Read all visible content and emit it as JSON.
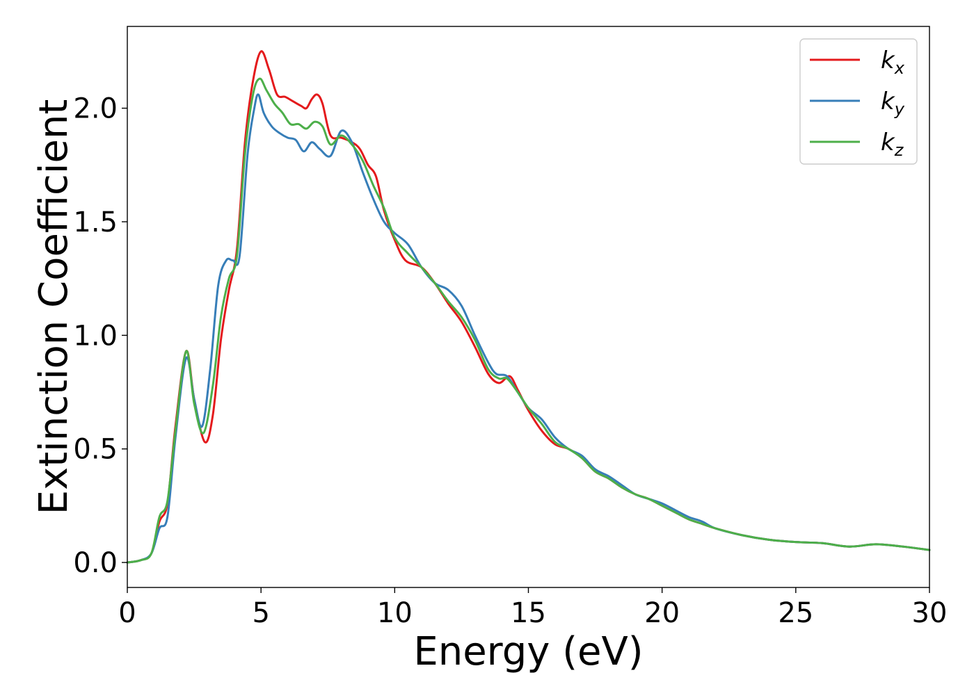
{
  "chart_data": {
    "type": "line",
    "title": "",
    "xlabel": "Energy (eV)",
    "ylabel": "Extinction Coefficient",
    "xlim": [
      0,
      30
    ],
    "ylim": [
      -0.11,
      2.36
    ],
    "xticks": [
      0,
      5,
      10,
      15,
      20,
      25,
      30
    ],
    "xtick_labels": [
      "0",
      "5",
      "10",
      "15",
      "20",
      "25",
      "30"
    ],
    "yticks": [
      0.0,
      0.5,
      1.0,
      1.5,
      2.0
    ],
    "ytick_labels": [
      "0.0",
      "0.5",
      "1.0",
      "1.5",
      "2.0"
    ],
    "grid": false,
    "legend_position": "top-right",
    "series": [
      {
        "name": "k",
        "subscript": "x",
        "color": "#e41a1c",
        "points": [
          [
            0,
            0
          ],
          [
            0.5,
            0.01
          ],
          [
            0.9,
            0.04
          ],
          [
            1.2,
            0.18
          ],
          [
            1.5,
            0.26
          ],
          [
            1.8,
            0.6
          ],
          [
            2.2,
            0.93
          ],
          [
            2.5,
            0.72
          ],
          [
            2.9,
            0.53
          ],
          [
            3.2,
            0.65
          ],
          [
            3.5,
            0.98
          ],
          [
            3.8,
            1.2
          ],
          [
            4.1,
            1.38
          ],
          [
            4.4,
            1.85
          ],
          [
            4.7,
            2.12
          ],
          [
            5.0,
            2.25
          ],
          [
            5.3,
            2.17
          ],
          [
            5.6,
            2.06
          ],
          [
            5.9,
            2.05
          ],
          [
            6.2,
            2.03
          ],
          [
            6.5,
            2.01
          ],
          [
            6.7,
            2.0
          ],
          [
            6.9,
            2.04
          ],
          [
            7.1,
            2.06
          ],
          [
            7.3,
            2.02
          ],
          [
            7.6,
            1.88
          ],
          [
            8.0,
            1.87
          ],
          [
            8.4,
            1.85
          ],
          [
            8.7,
            1.82
          ],
          [
            9.0,
            1.75
          ],
          [
            9.3,
            1.7
          ],
          [
            9.6,
            1.55
          ],
          [
            10.0,
            1.42
          ],
          [
            10.4,
            1.33
          ],
          [
            11.0,
            1.3
          ],
          [
            11.5,
            1.23
          ],
          [
            12.0,
            1.14
          ],
          [
            12.5,
            1.06
          ],
          [
            13.0,
            0.95
          ],
          [
            13.5,
            0.83
          ],
          [
            13.9,
            0.79
          ],
          [
            14.3,
            0.82
          ],
          [
            14.6,
            0.76
          ],
          [
            15.0,
            0.67
          ],
          [
            15.5,
            0.58
          ],
          [
            16.0,
            0.52
          ],
          [
            16.5,
            0.5
          ],
          [
            17.0,
            0.46
          ],
          [
            17.5,
            0.4
          ],
          [
            18.0,
            0.37
          ],
          [
            18.5,
            0.33
          ],
          [
            19.0,
            0.3
          ],
          [
            19.5,
            0.28
          ],
          [
            20.0,
            0.25
          ],
          [
            20.5,
            0.22
          ],
          [
            21.0,
            0.19
          ],
          [
            21.5,
            0.17
          ],
          [
            22.0,
            0.15
          ],
          [
            23.0,
            0.12
          ],
          [
            24.0,
            0.1
          ],
          [
            25.0,
            0.09
          ],
          [
            26.0,
            0.085
          ],
          [
            27.0,
            0.07
          ],
          [
            28.0,
            0.08
          ],
          [
            29.0,
            0.07
          ],
          [
            30.0,
            0.055
          ]
        ]
      },
      {
        "name": "k",
        "subscript": "y",
        "color": "#377eb8",
        "points": [
          [
            0,
            0
          ],
          [
            0.5,
            0.01
          ],
          [
            0.9,
            0.04
          ],
          [
            1.2,
            0.15
          ],
          [
            1.5,
            0.2
          ],
          [
            1.8,
            0.55
          ],
          [
            2.2,
            0.9
          ],
          [
            2.5,
            0.72
          ],
          [
            2.8,
            0.6
          ],
          [
            3.1,
            0.85
          ],
          [
            3.4,
            1.22
          ],
          [
            3.7,
            1.33
          ],
          [
            3.95,
            1.33
          ],
          [
            4.2,
            1.35
          ],
          [
            4.5,
            1.8
          ],
          [
            4.75,
            2.0
          ],
          [
            4.9,
            2.06
          ],
          [
            5.1,
            1.98
          ],
          [
            5.4,
            1.92
          ],
          [
            5.7,
            1.89
          ],
          [
            6.0,
            1.87
          ],
          [
            6.3,
            1.86
          ],
          [
            6.6,
            1.81
          ],
          [
            6.9,
            1.85
          ],
          [
            7.2,
            1.82
          ],
          [
            7.6,
            1.79
          ],
          [
            8.0,
            1.9
          ],
          [
            8.4,
            1.85
          ],
          [
            8.8,
            1.72
          ],
          [
            9.2,
            1.6
          ],
          [
            9.6,
            1.5
          ],
          [
            10.0,
            1.45
          ],
          [
            10.5,
            1.4
          ],
          [
            11.0,
            1.3
          ],
          [
            11.5,
            1.23
          ],
          [
            12.0,
            1.2
          ],
          [
            12.5,
            1.13
          ],
          [
            13.0,
            1.0
          ],
          [
            13.5,
            0.88
          ],
          [
            13.8,
            0.83
          ],
          [
            14.2,
            0.82
          ],
          [
            14.6,
            0.75
          ],
          [
            15.0,
            0.68
          ],
          [
            15.5,
            0.63
          ],
          [
            16.0,
            0.55
          ],
          [
            16.5,
            0.5
          ],
          [
            17.0,
            0.47
          ],
          [
            17.5,
            0.41
          ],
          [
            18.0,
            0.38
          ],
          [
            18.5,
            0.34
          ],
          [
            19.0,
            0.3
          ],
          [
            19.5,
            0.28
          ],
          [
            20.0,
            0.26
          ],
          [
            20.5,
            0.23
          ],
          [
            21.0,
            0.2
          ],
          [
            21.5,
            0.18
          ],
          [
            22.0,
            0.15
          ],
          [
            23.0,
            0.12
          ],
          [
            24.0,
            0.1
          ],
          [
            25.0,
            0.09
          ],
          [
            26.0,
            0.085
          ],
          [
            27.0,
            0.07
          ],
          [
            28.0,
            0.08
          ],
          [
            29.0,
            0.07
          ],
          [
            30.0,
            0.055
          ]
        ]
      },
      {
        "name": "k",
        "subscript": "z",
        "color": "#4daf4a",
        "points": [
          [
            0,
            0
          ],
          [
            0.5,
            0.01
          ],
          [
            0.9,
            0.04
          ],
          [
            1.2,
            0.2
          ],
          [
            1.5,
            0.27
          ],
          [
            1.8,
            0.58
          ],
          [
            2.2,
            0.93
          ],
          [
            2.5,
            0.7
          ],
          [
            2.85,
            0.57
          ],
          [
            3.2,
            0.78
          ],
          [
            3.5,
            1.08
          ],
          [
            3.8,
            1.25
          ],
          [
            4.1,
            1.35
          ],
          [
            4.4,
            1.8
          ],
          [
            4.7,
            2.06
          ],
          [
            4.95,
            2.13
          ],
          [
            5.2,
            2.08
          ],
          [
            5.5,
            2.02
          ],
          [
            5.8,
            1.98
          ],
          [
            6.1,
            1.93
          ],
          [
            6.4,
            1.93
          ],
          [
            6.7,
            1.91
          ],
          [
            7.0,
            1.94
          ],
          [
            7.3,
            1.92
          ],
          [
            7.6,
            1.84
          ],
          [
            8.0,
            1.88
          ],
          [
            8.4,
            1.84
          ],
          [
            8.8,
            1.77
          ],
          [
            9.2,
            1.66
          ],
          [
            9.6,
            1.56
          ],
          [
            10.0,
            1.43
          ],
          [
            10.5,
            1.36
          ],
          [
            11.0,
            1.3
          ],
          [
            11.5,
            1.23
          ],
          [
            12.0,
            1.15
          ],
          [
            12.5,
            1.08
          ],
          [
            13.0,
            0.98
          ],
          [
            13.5,
            0.85
          ],
          [
            13.9,
            0.81
          ],
          [
            14.2,
            0.81
          ],
          [
            14.6,
            0.75
          ],
          [
            15.0,
            0.68
          ],
          [
            15.5,
            0.61
          ],
          [
            16.0,
            0.53
          ],
          [
            16.5,
            0.5
          ],
          [
            17.0,
            0.46
          ],
          [
            17.5,
            0.4
          ],
          [
            18.0,
            0.37
          ],
          [
            18.5,
            0.33
          ],
          [
            19.0,
            0.3
          ],
          [
            19.5,
            0.28
          ],
          [
            20.0,
            0.25
          ],
          [
            20.5,
            0.22
          ],
          [
            21.0,
            0.19
          ],
          [
            21.5,
            0.17
          ],
          [
            22.0,
            0.15
          ],
          [
            23.0,
            0.12
          ],
          [
            24.0,
            0.1
          ],
          [
            25.0,
            0.09
          ],
          [
            26.0,
            0.085
          ],
          [
            27.0,
            0.07
          ],
          [
            28.0,
            0.08
          ],
          [
            29.0,
            0.07
          ],
          [
            30.0,
            0.055
          ]
        ]
      }
    ]
  }
}
